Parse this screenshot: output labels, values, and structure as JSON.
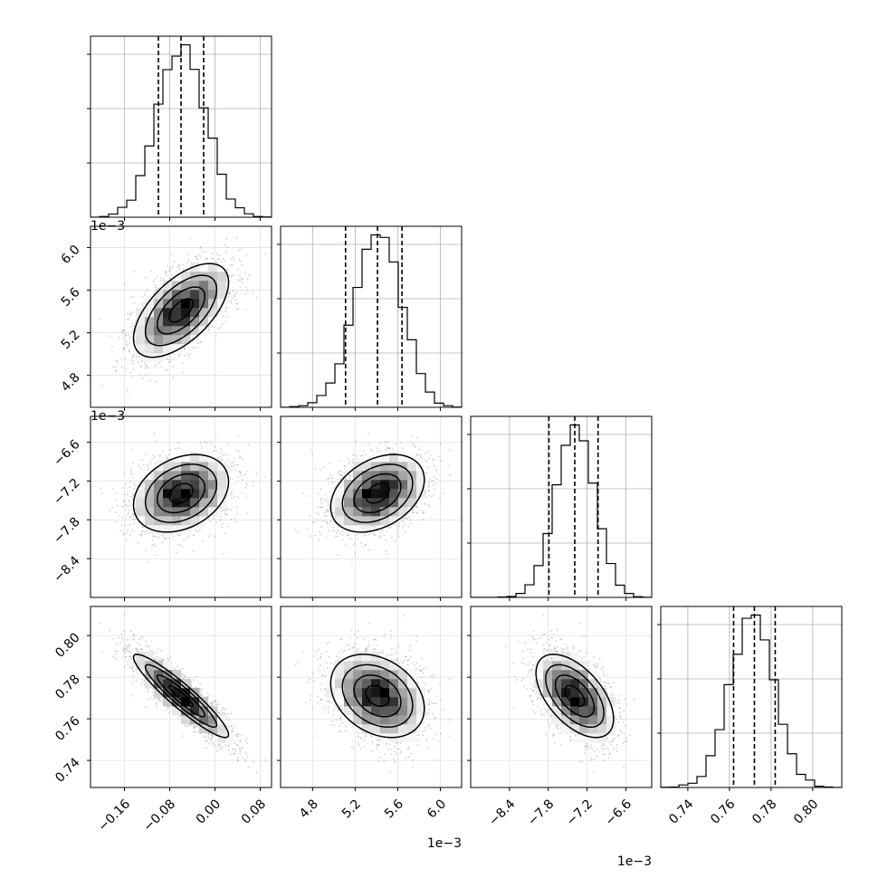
{
  "chart_data": {
    "type": "corner",
    "parameters": [
      {
        "index": 0,
        "axis_range": [
          -0.22,
          0.1
        ],
        "ticks": [
          -0.16,
          -0.08,
          0.0,
          0.08
        ],
        "tick_labels": [
          "−0.16",
          "−0.08",
          "0.00",
          "0.08"
        ],
        "mean": -0.06,
        "sd": 0.042,
        "quantiles": [
          -0.1,
          -0.06,
          -0.02
        ],
        "offset_label": ""
      },
      {
        "index": 1,
        "axis_range": [
          4.5,
          6.2
        ],
        "ticks": [
          4.8,
          5.2,
          5.6,
          6.0
        ],
        "tick_labels": [
          "4.8",
          "5.2",
          "5.6",
          "6.0"
        ],
        "mean": 5.41,
        "sd": 0.22,
        "quantiles": [
          5.11,
          5.41,
          5.64
        ],
        "offset_label": "1e−3"
      },
      {
        "index": 2,
        "axis_range": [
          -9.0,
          -6.2
        ],
        "ticks": [
          -8.4,
          -7.8,
          -7.2,
          -6.6
        ],
        "tick_labels": [
          "−8.4",
          "−7.8",
          "−7.2",
          "−6.6"
        ],
        "mean": -7.39,
        "sd": 0.3,
        "quantiles": [
          -7.79,
          -7.39,
          -7.03
        ],
        "offset_label": "1e−3"
      },
      {
        "index": 3,
        "axis_range": [
          0.727,
          0.814
        ],
        "ticks": [
          0.74,
          0.76,
          0.78,
          0.8
        ],
        "tick_labels": [
          "0.74",
          "0.76",
          "0.78",
          "0.80"
        ],
        "mean": 0.771,
        "sd": 0.01,
        "quantiles": [
          0.762,
          0.772,
          0.782
        ],
        "offset_label": ""
      }
    ],
    "correlations": [
      {
        "pair": [
          0,
          1
        ],
        "rho": 0.6
      },
      {
        "pair": [
          0,
          2
        ],
        "rho": 0.3
      },
      {
        "pair": [
          1,
          2
        ],
        "rho": 0.35
      },
      {
        "pair": [
          0,
          3
        ],
        "rho": -0.93
      },
      {
        "pair": [
          1,
          3
        ],
        "rho": -0.3
      },
      {
        "pair": [
          2,
          3
        ],
        "rho": -0.55
      }
    ],
    "histogram_bins": 20,
    "contour_levels": 3,
    "quantile_style": "dashed",
    "grid": true
  }
}
